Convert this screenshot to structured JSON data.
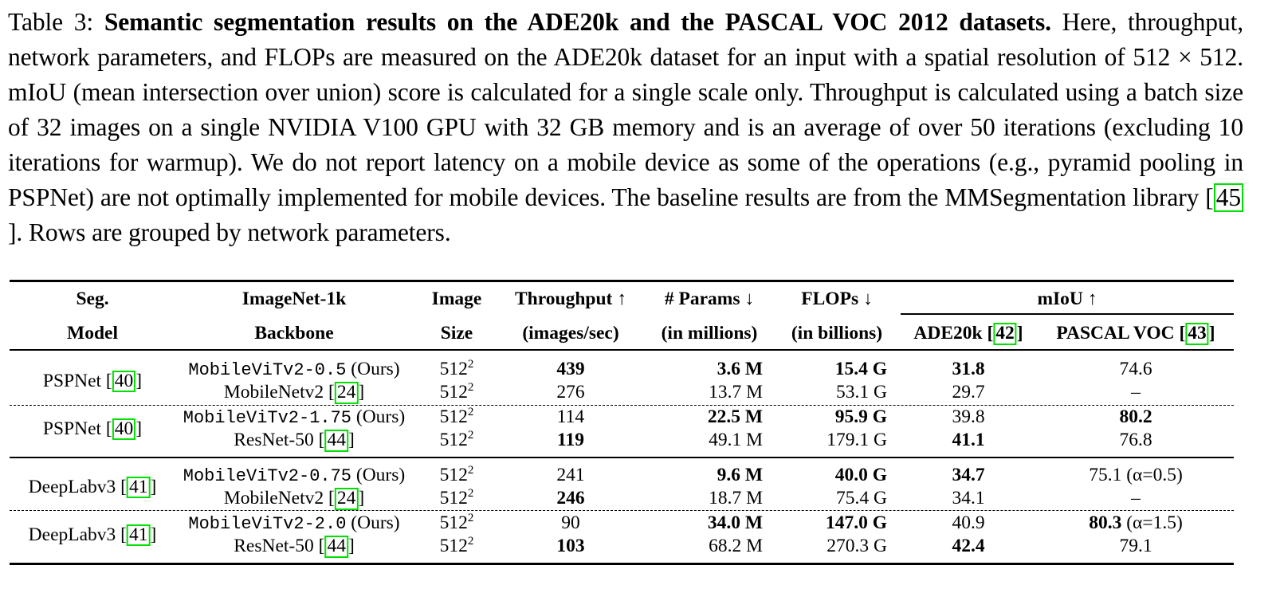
{
  "caption": {
    "label": "Table 3:",
    "title": "Semantic segmentation results on the ADE20k and the PASCAL VOC 2012 datasets.",
    "body_1": "Here, throughput, network parameters, and FLOPs are measured on the ADE20k dataset for an input with a spatial resolution of 512 × 512. mIoU (mean intersection over union) score is calculated for a single scale only. Throughput is calculated using a batch size of 32 images on a single NVIDIA V100 GPU with 32 GB memory and is an average of over 50 iterations (excluding 10 iterations for warmup). We do not report latency on a mobile device as some of the operations (e.g., pyramid pooling in PSPNet) are not optimally implemented for mobile devices. The baseline results are from the MMSegmentation library [",
    "ref": "45",
    "body_2": "]. Rows are grouped by network parameters."
  },
  "headers": {
    "seg_1": "Seg.",
    "seg_2": "Model",
    "backbone_1": "ImageNet-1k",
    "backbone_2": "Backbone",
    "size_1": "Image",
    "size_2": "Size",
    "throughput_1": "Throughput ↑",
    "throughput_2": "(images/sec)",
    "params_1": "# Params ↓",
    "params_2": "(in millions)",
    "flops_1": "FLOPs ↓",
    "flops_2": "(in billions)",
    "miou": "mIoU ↑",
    "ade_label": "ADE20k [",
    "ade_ref": "42",
    "voc_label": "PASCAL VOC [",
    "voc_ref": "43"
  },
  "groups": [
    {
      "model": "PSPNet [",
      "ref": "40",
      "rows": [
        {
          "backbone": "MobileViTv2-0.5",
          "ours": "(Ours)",
          "ref": "",
          "size": "512",
          "exp": "2",
          "throughput": "439",
          "params": "3.6 M",
          "flops": "15.4 G",
          "ade": "31.8",
          "voc": "74.6",
          "voc_note": ""
        },
        {
          "backbone": "MobileNetv2 [",
          "ours": "",
          "ref": "24",
          "size": "512",
          "exp": "2",
          "throughput": "276",
          "params": "13.7 M",
          "flops": "53.1 G",
          "ade": "29.7",
          "voc": "–",
          "voc_note": ""
        }
      ]
    },
    {
      "model": "PSPNet [",
      "ref": "40",
      "rows": [
        {
          "backbone": "MobileViTv2-1.75",
          "ours": "(Ours)",
          "ref": "",
          "size": "512",
          "exp": "2",
          "throughput": "114",
          "params": "22.5 M",
          "flops": "95.9 G",
          "ade": "39.8",
          "voc": "80.2",
          "voc_note": ""
        },
        {
          "backbone": "ResNet-50 [",
          "ours": "",
          "ref": "44",
          "size": "512",
          "exp": "2",
          "throughput": "119",
          "params": "49.1 M",
          "flops": "179.1 G",
          "ade": "41.1",
          "voc": "76.8",
          "voc_note": ""
        }
      ]
    },
    {
      "model": "DeepLabv3 [",
      "ref": "41",
      "rows": [
        {
          "backbone": "MobileViTv2-0.75",
          "ours": "(Ours)",
          "ref": "",
          "size": "512",
          "exp": "2",
          "throughput": "241",
          "params": "9.6 M",
          "flops": "40.0 G",
          "ade": "34.7",
          "voc": "75.1",
          "voc_note": "(α=0.5)"
        },
        {
          "backbone": "MobileNetv2 [",
          "ours": "",
          "ref": "24",
          "size": "512",
          "exp": "2",
          "throughput": "246",
          "params": "18.7 M",
          "flops": "75.4 G",
          "ade": "34.1",
          "voc": "–",
          "voc_note": ""
        }
      ]
    },
    {
      "model": "DeepLabv3 [",
      "ref": "41",
      "rows": [
        {
          "backbone": "MobileViTv2-2.0",
          "ours": "(Ours)",
          "ref": "",
          "size": "512",
          "exp": "2",
          "throughput": "90",
          "params": "34.0 M",
          "flops": "147.0 G",
          "ade": "40.9",
          "voc": "80.3",
          "voc_note": "(α=1.5)"
        },
        {
          "backbone": "ResNet-50 [",
          "ours": "",
          "ref": "44",
          "size": "512",
          "exp": "2",
          "throughput": "103",
          "params": "68.2 M",
          "flops": "270.3 G",
          "ade": "42.4",
          "voc": "79.1",
          "voc_note": ""
        }
      ]
    }
  ],
  "bold_cells": [
    "0.0.throughput",
    "0.0.params",
    "0.0.flops",
    "0.0.ade",
    "1.0.params",
    "1.0.flops",
    "1.0.voc",
    "1.1.throughput",
    "1.1.ade",
    "2.0.params",
    "2.0.flops",
    "2.0.ade",
    "2.1.throughput",
    "3.0.params",
    "3.0.flops",
    "3.0.voc",
    "3.1.throughput",
    "3.1.ade"
  ]
}
